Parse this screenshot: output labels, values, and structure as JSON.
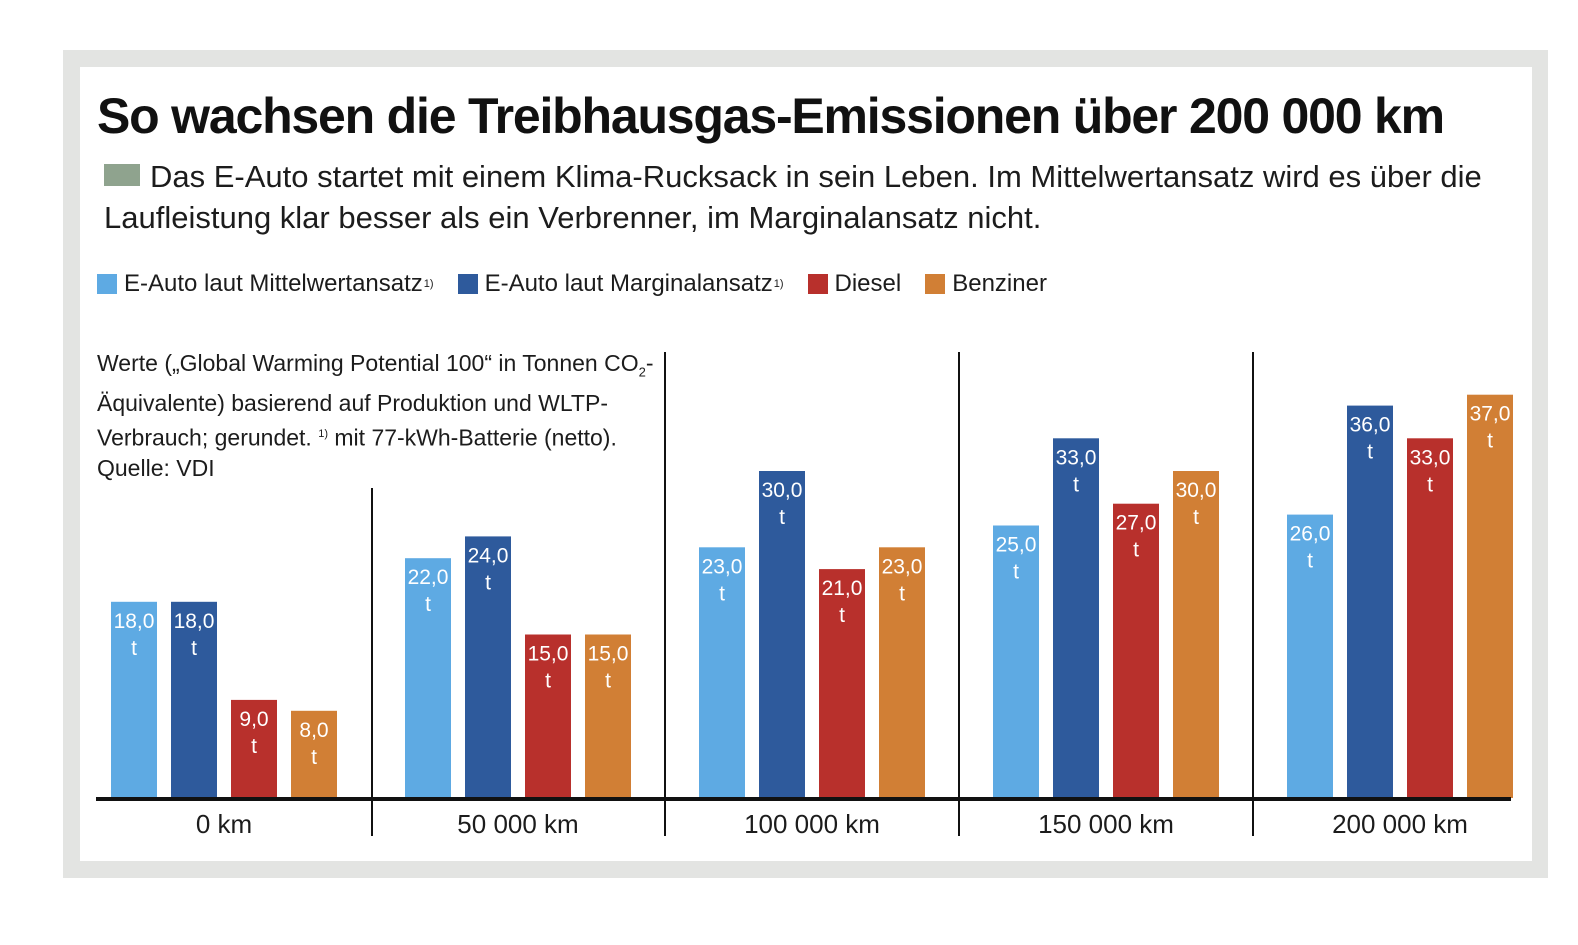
{
  "title": "So wachsen die Treibhausgas-Emissionen über 200 000 km",
  "subtitle": "Das E-Auto startet mit einem Klima-Rucksack in sein Leben. Im Mittelwertansatz wird es über die Laufleistung klar besser als ein Verbrenner, im Marginalansatz nicht.",
  "subtitle_swatch_color": "#8fa38e",
  "note": {
    "part1": "Werte („Global Warming Potential 100“ in Tonnen CO",
    "sub": "2",
    "part2": "-Äquivalente) basierend auf Produktion und WLTP-Verbrauch; gerundet. ",
    "sup": "1)",
    "part3": " mit 77-kWh-Batterie (netto). Quelle: VDI"
  },
  "legend": [
    {
      "label": "E-Auto laut Mittelwertansatz",
      "footnote": "1)",
      "color": "#5eaae3"
    },
    {
      "label": "E-Auto laut Marginalansatz",
      "footnote": "1)",
      "color": "#2e5a9c"
    },
    {
      "label": "Diesel",
      "footnote": "",
      "color": "#b8302c"
    },
    {
      "label": "Benziner",
      "footnote": "",
      "color": "#d17f35"
    }
  ],
  "chart_data": {
    "type": "bar",
    "categories": [
      "0 km",
      "50 000 km",
      "100 000 km",
      "150 000 km",
      "200 000 km"
    ],
    "unit": "t",
    "series": [
      {
        "name": "E-Auto laut Mittelwertansatz",
        "color": "#5eaae3",
        "values": [
          18.0,
          22.0,
          23.0,
          25.0,
          26.0
        ],
        "labels": [
          "18,0",
          "22,0",
          "23,0",
          "25,0",
          "26,0"
        ]
      },
      {
        "name": "E-Auto laut Marginalansatz",
        "color": "#2e5a9c",
        "values": [
          18.0,
          24.0,
          30.0,
          33.0,
          36.0
        ],
        "labels": [
          "18,0",
          "24,0",
          "30,0",
          "33,0",
          "36,0"
        ]
      },
      {
        "name": "Diesel",
        "color": "#b8302c",
        "values": [
          9.0,
          15.0,
          21.0,
          27.0,
          33.0
        ],
        "labels": [
          "9,0",
          "15,0",
          "21,0",
          "27,0",
          "33,0"
        ]
      },
      {
        "name": "Benziner",
        "color": "#d17f35",
        "values": [
          8.0,
          15.0,
          23.0,
          30.0,
          37.0
        ],
        "labels": [
          "8,0",
          "15,0",
          "23,0",
          "30,0",
          "37,0"
        ]
      }
    ],
    "ylim": [
      0,
      37
    ],
    "grid": false,
    "legend_position": "top-left"
  }
}
